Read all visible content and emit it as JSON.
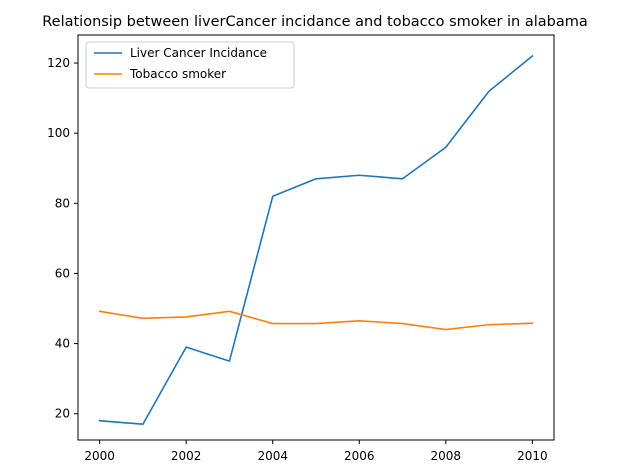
{
  "chart_data": {
    "type": "line",
    "title": "Relationsip between liverCancer incidance and tobacco smoker in alabama",
    "xlabel": "",
    "ylabel": "",
    "x": [
      2000,
      2001,
      2002,
      2003,
      2004,
      2005,
      2006,
      2007,
      2008,
      2009,
      2010
    ],
    "xlim": [
      1999.5,
      2010.5
    ],
    "ylim": [
      12.5,
      128
    ],
    "xticks": [
      2000,
      2002,
      2004,
      2006,
      2008,
      2010
    ],
    "yticks": [
      20,
      40,
      60,
      80,
      100,
      120
    ],
    "grid": false,
    "legend_position": "top-left",
    "series": [
      {
        "name": "Liver Cancer Incidance",
        "color": "#1f77b4",
        "values": [
          18,
          17,
          39,
          35,
          82,
          87,
          88,
          87,
          96,
          112,
          122
        ]
      },
      {
        "name": "Tobacco smoker",
        "color": "#ff7f0e",
        "values": [
          49.2,
          47.2,
          47.6,
          49.2,
          45.7,
          45.7,
          46.5,
          45.7,
          44.0,
          45.4,
          45.8
        ]
      }
    ]
  }
}
